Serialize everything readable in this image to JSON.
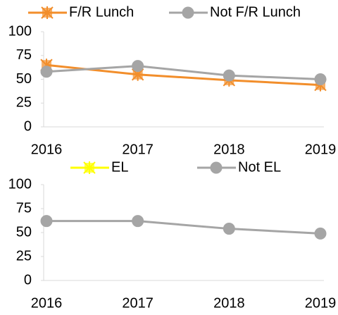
{
  "chart_data": [
    {
      "type": "line",
      "categories": [
        "2016",
        "2017",
        "2018",
        "2019"
      ],
      "series": [
        {
          "name": "F/R Lunch",
          "color": "#f28e2b",
          "marker": "square-x",
          "values": [
            65,
            55,
            49,
            44
          ]
        },
        {
          "name": "Not F/R Lunch",
          "color": "#a5a5a5",
          "marker": "circle",
          "values": [
            58,
            64,
            54,
            50
          ]
        }
      ],
      "ylim": [
        0,
        100
      ],
      "yticks": [
        0,
        25,
        50,
        75,
        100
      ],
      "grid": false
    },
    {
      "type": "line",
      "categories": [
        "2016",
        "2017",
        "2018",
        "2019"
      ],
      "series": [
        {
          "name": "EL",
          "color": "#ffff00",
          "marker": "square-x",
          "values": [
            null,
            null,
            null,
            null
          ]
        },
        {
          "name": "Not EL",
          "color": "#a5a5a5",
          "marker": "circle",
          "values": [
            62,
            62,
            54,
            49
          ]
        }
      ],
      "ylim": [
        0,
        100
      ],
      "yticks": [
        0,
        25,
        50,
        75,
        100
      ],
      "grid": false
    }
  ]
}
